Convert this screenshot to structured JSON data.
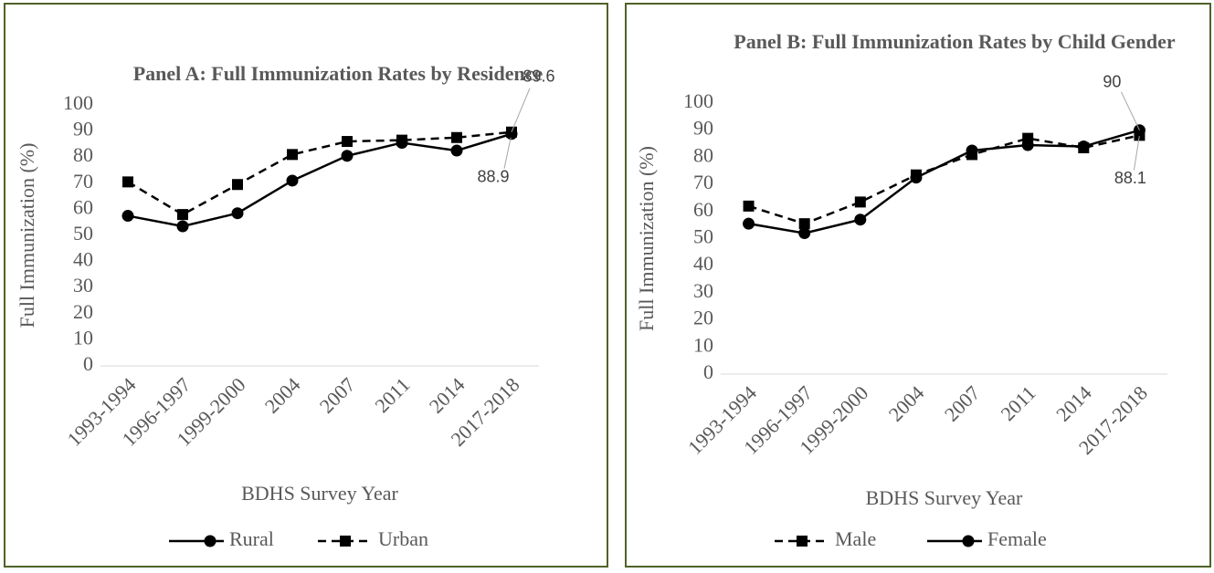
{
  "chart_data": [
    {
      "type": "line",
      "title": "Panel A: Full Immunization Rates by Residence",
      "x_label": "BDHS Survey Year",
      "y_label": "Full Immunization (%)",
      "categories": [
        "1993-1994",
        "1996-1997",
        "1999-2000",
        "2004",
        "2007",
        "2011",
        "2014",
        "2017-2018"
      ],
      "series": [
        {
          "name": "Rural",
          "color": "#000000",
          "dash": "solid",
          "marker": "circle",
          "values": [
            57.5,
            53.5,
            58.5,
            71,
            80.5,
            85.5,
            82.5,
            88.9
          ]
        },
        {
          "name": "Urban",
          "color": "#000000",
          "dash": "dashed",
          "marker": "square",
          "values": [
            70.5,
            58,
            69.5,
            81,
            86,
            86.5,
            87.5,
            89.6
          ]
        }
      ],
      "ylim": [
        0,
        100
      ],
      "yticks": [
        0,
        10,
        20,
        30,
        40,
        50,
        60,
        70,
        80,
        90,
        100
      ],
      "grid": false,
      "legend": "bottom"
    },
    {
      "type": "line",
      "title": "Panel B: Full Immunization Rates by Child Gender",
      "x_label": "BDHS Survey Year",
      "y_label": "Full Immunization (%)",
      "categories": [
        "1993-1994",
        "1996-1997",
        "1999-2000",
        "2004",
        "2007",
        "2011",
        "2014",
        "2017-2018"
      ],
      "series": [
        {
          "name": "Male",
          "color": "#000000",
          "dash": "dashed",
          "marker": "square",
          "values": [
            62,
            55.5,
            63.5,
            73.5,
            81,
            87,
            83.5,
            88.1
          ]
        },
        {
          "name": "Female",
          "color": "#000000",
          "dash": "solid",
          "marker": "circle",
          "values": [
            55.5,
            52,
            57,
            72.5,
            82.5,
            84.5,
            84,
            90
          ]
        }
      ],
      "ylim": [
        0,
        100
      ],
      "yticks": [
        0,
        10,
        20,
        30,
        40,
        50,
        60,
        70,
        80,
        90,
        100
      ],
      "grid": false,
      "legend": "bottom"
    }
  ]
}
